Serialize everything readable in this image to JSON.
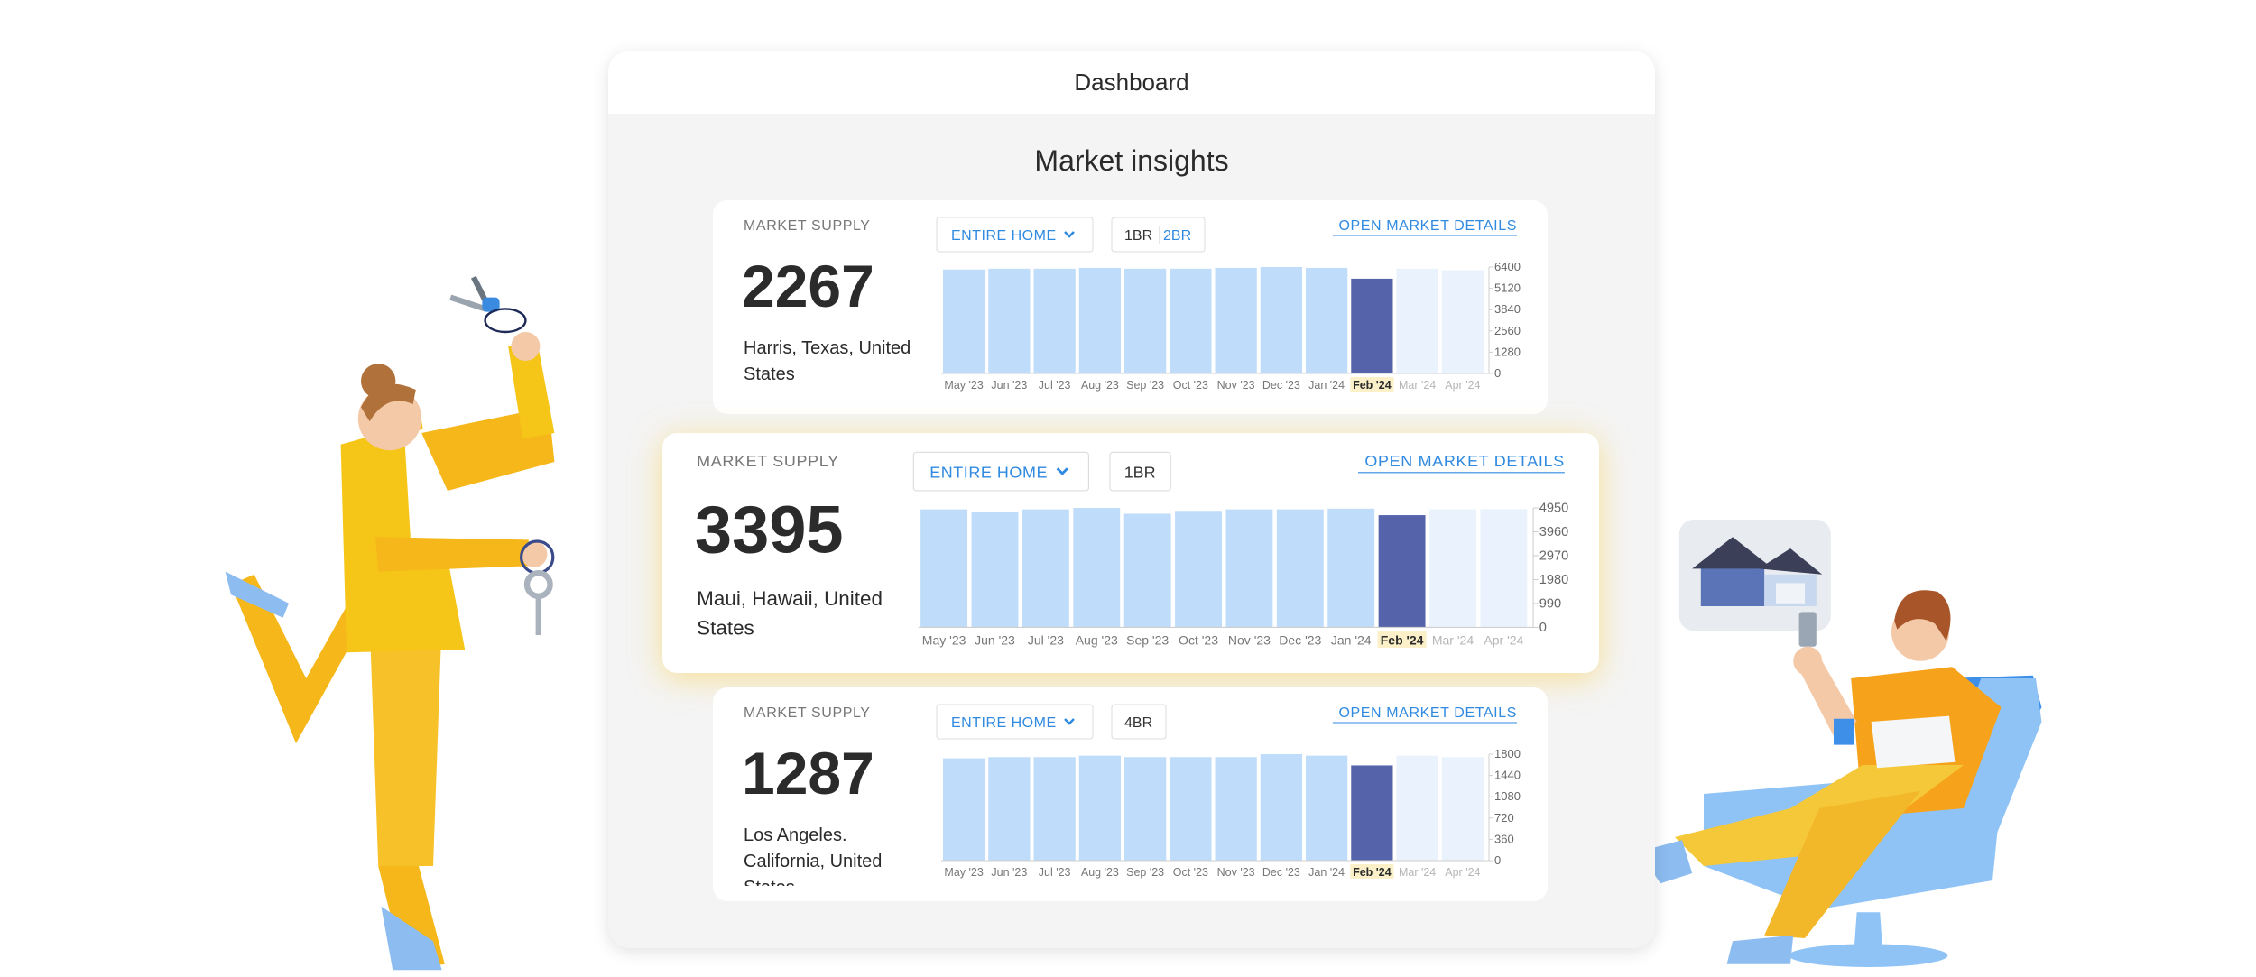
{
  "header": {
    "title": "Dashboard"
  },
  "section": {
    "title": "Market insights"
  },
  "cards": [
    {
      "label": "MARKET SUPPLY",
      "value": 2267,
      "location": "Harris, Texas, United States",
      "property_type": "ENTIRE HOME",
      "bedrooms": [
        "1BR",
        "2BR"
      ],
      "link": "OPEN MARKET DETAILS",
      "chart": {
        "type": "bar",
        "categories": [
          "May '23",
          "Jun '23",
          "Jul '23",
          "Aug '23",
          "Sep '23",
          "Oct '23",
          "Nov '23",
          "Dec '23",
          "Jan '24",
          "Feb '24",
          "Mar '24",
          "Apr '24"
        ],
        "values": [
          6250,
          6300,
          6300,
          6350,
          6300,
          6300,
          6350,
          6400,
          6350,
          5700,
          6300,
          6200
        ],
        "colors": [
          "#bfdcfa",
          "#bfdcfa",
          "#bfdcfa",
          "#bfdcfa",
          "#bfdcfa",
          "#bfdcfa",
          "#bfdcfa",
          "#bfdcfa",
          "#bfdcfa",
          "#5563ab",
          "#eaf3fd",
          "#eaf3fd"
        ],
        "highlight_color": "#5563ab",
        "ylim": [
          0,
          6400
        ],
        "yticks": [
          0,
          1280,
          2560,
          3840,
          5120,
          6400
        ]
      }
    },
    {
      "label": "MARKET SUPPLY",
      "value": 3395,
      "location": "Maui, Hawaii, United States",
      "property_type": "ENTIRE HOME",
      "bedrooms": [
        "1BR"
      ],
      "link": "OPEN MARKET DETAILS",
      "chart": {
        "type": "bar",
        "categories": [
          "May '23",
          "Jun '23",
          "Jul '23",
          "Aug '23",
          "Sep '23",
          "Oct '23",
          "Nov '23",
          "Dec '23",
          "Jan '24",
          "Feb '24",
          "Mar '24",
          "Apr '24"
        ],
        "values": [
          4890,
          4770,
          4890,
          4950,
          4710,
          4830,
          4890,
          4890,
          4920,
          4650,
          4890,
          4900
        ],
        "colors": [
          "#bfdcfa",
          "#bfdcfa",
          "#bfdcfa",
          "#bfdcfa",
          "#bfdcfa",
          "#bfdcfa",
          "#bfdcfa",
          "#bfdcfa",
          "#bfdcfa",
          "#5563ab",
          "#eaf3fd",
          "#eaf3fd"
        ],
        "highlight_color": "#5563ab",
        "ylim": [
          0,
          4950
        ],
        "yticks": [
          0,
          990,
          1980,
          2970,
          3960,
          4950
        ]
      }
    },
    {
      "label": "MARKET SUPPLY",
      "value": 1287,
      "location": "Los Angeles. California, United States",
      "property_type": "ENTIRE HOME",
      "bedrooms": [
        "4BR"
      ],
      "link": "OPEN MARKET DETAILS",
      "chart": {
        "type": "bar",
        "categories": [
          "May '23",
          "Jun '23",
          "Jul '23",
          "Aug '23",
          "Sep '23",
          "Oct '23",
          "Nov '23",
          "Dec '23",
          "Jan '24",
          "Feb '24",
          "Mar '24",
          "Apr '24"
        ],
        "values": [
          1730,
          1750,
          1750,
          1775,
          1750,
          1750,
          1750,
          1800,
          1775,
          1610,
          1775,
          1750
        ],
        "colors": [
          "#bfdcfa",
          "#bfdcfa",
          "#bfdcfa",
          "#bfdcfa",
          "#bfdcfa",
          "#bfdcfa",
          "#bfdcfa",
          "#bfdcfa",
          "#bfdcfa",
          "#5563ab",
          "#eaf3fd",
          "#eaf3fd"
        ],
        "highlight_color": "#5563ab",
        "ylim": [
          0,
          1800
        ],
        "yticks": [
          0,
          360,
          720,
          1080,
          1440,
          1800
        ]
      }
    }
  ]
}
